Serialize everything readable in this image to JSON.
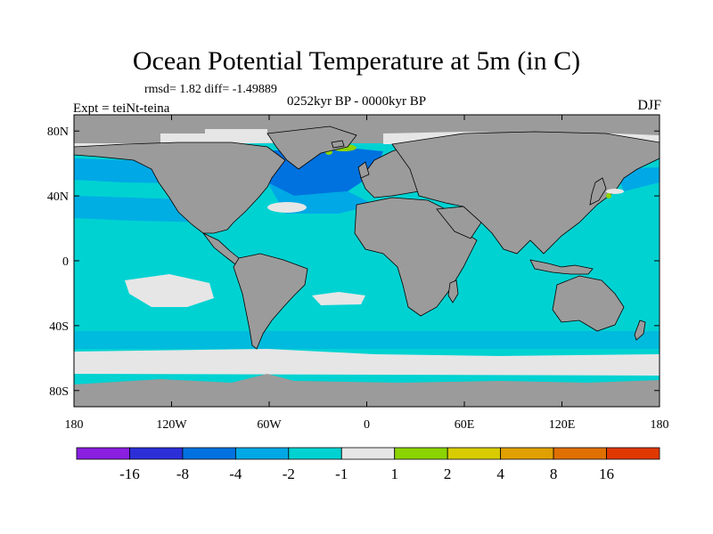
{
  "title": "Ocean Potential Temperature at 5m (in C)",
  "stats_line": "rmsd= 1.82 diff= -1.49889",
  "experiment_label": "Expt = teiNt-teina",
  "period_label": "0252kyr BP - 0000kyr BP",
  "season_label": "DJF",
  "map": {
    "projection": "cylindrical-equidistant",
    "lon_range": [
      -180,
      180
    ],
    "lat_range": [
      -90,
      90
    ],
    "land_color": "#9b9b9b",
    "ocean_base_color": "#00d2d2",
    "lat_ticks": [
      {
        "value": 80,
        "label": "80N"
      },
      {
        "value": 40,
        "label": "40N"
      },
      {
        "value": 0,
        "label": "0"
      },
      {
        "value": -40,
        "label": "40S"
      },
      {
        "value": -80,
        "label": "80S"
      }
    ],
    "lon_ticks": [
      {
        "value": -180,
        "label": "180"
      },
      {
        "value": -120,
        "label": "120W"
      },
      {
        "value": -60,
        "label": "60W"
      },
      {
        "value": 0,
        "label": "0"
      },
      {
        "value": 60,
        "label": "60E"
      },
      {
        "value": 120,
        "label": "120E"
      },
      {
        "value": 180,
        "label": "180"
      }
    ]
  },
  "colorbar": {
    "colors": [
      "#8a1fe0",
      "#2c2fd8",
      "#0072e0",
      "#00a8e6",
      "#00d2d2",
      "#e6e6e6",
      "#8cd400",
      "#d8cc00",
      "#e0a000",
      "#e07000",
      "#e03800"
    ],
    "labels": [
      "-16",
      "-8",
      "-4",
      "-2",
      "-1",
      "1",
      "2",
      "4",
      "8",
      "16"
    ]
  }
}
